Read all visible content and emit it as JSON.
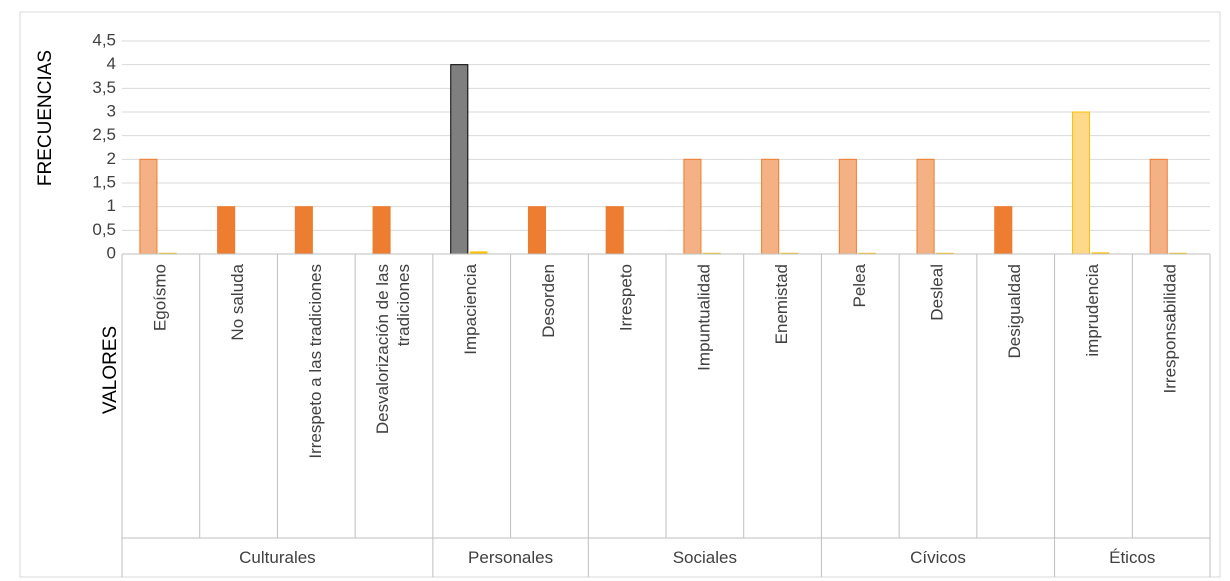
{
  "chart_data": {
    "type": "bar",
    "ylabel": "FRECUENCIAS",
    "xlabel": "VALORES",
    "ylim": [
      0,
      4.5
    ],
    "y_ticks": [
      "0",
      "0,5",
      "1",
      "1,5",
      "2",
      "2,5",
      "3",
      "3,5",
      "4",
      "4,5"
    ],
    "grid": true,
    "legend": "none",
    "groups": [
      {
        "name": "Culturales",
        "categories": [
          "Egoísmo",
          "No saluda",
          "Irrespeto a las tradiciones",
          "Desvalorización de las tradiciones"
        ]
      },
      {
        "name": "Personales",
        "categories": [
          "Impaciencia",
          "Desorden"
        ]
      },
      {
        "name": "Sociales",
        "categories": [
          "Irrespeto",
          "Impuntualidad",
          "Enemistad"
        ]
      },
      {
        "name": "Cívicos",
        "categories": [
          "Pelea",
          "Desleal",
          "Desigualdad"
        ]
      },
      {
        "name": "Éticos",
        "categories": [
          "imprudencia",
          "Irresponsabilidad"
        ]
      }
    ],
    "series": [
      {
        "values": [
          2,
          1,
          1,
          1,
          4,
          1,
          1,
          2,
          2,
          2,
          2,
          1,
          3,
          2
        ]
      },
      {
        "values": [
          0.02,
          0,
          0,
          0,
          0.05,
          0,
          0,
          0.02,
          0.02,
          0.02,
          0.02,
          0,
          0.03,
          0.02
        ]
      }
    ],
    "colors": {
      "primary_fills": [
        "#f4b183",
        "#ed7d31",
        "#ed7d31",
        "#ed7d31",
        "#7f7f7f",
        "#ed7d31",
        "#ed7d31",
        "#f4b183",
        "#f4b183",
        "#f4b183",
        "#f4b183",
        "#ed7d31",
        "#ffd98a",
        "#f4b183"
      ],
      "primary_strokes": [
        "#ed7d31",
        "#ed7d31",
        "#ed7d31",
        "#ed7d31",
        "#000000",
        "#ed7d31",
        "#ed7d31",
        "#ed7d31",
        "#ed7d31",
        "#ed7d31",
        "#ed7d31",
        "#ed7d31",
        "#ffc000",
        "#ed7d31"
      ],
      "secondary_fill": "#ffc000",
      "grid": "#d9d9d9",
      "axis": "#bfbfbf",
      "text": "#404040"
    }
  }
}
